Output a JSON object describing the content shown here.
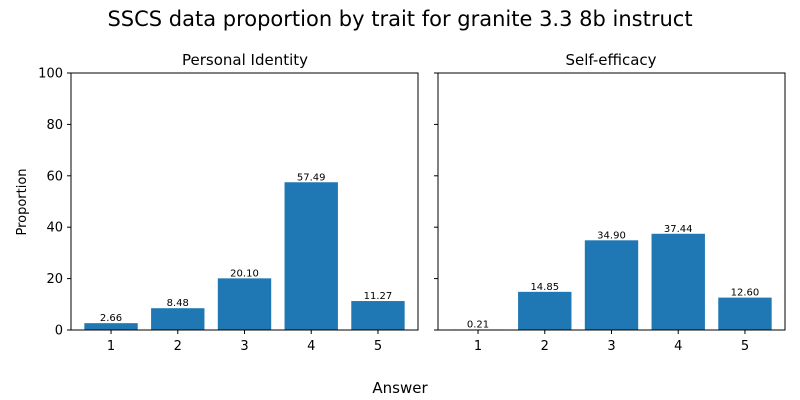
{
  "figure": {
    "title": "SSCS data proportion by trait for granite 3.3 8b instruct",
    "xlabel": "Answer",
    "ylabel": "Proportion"
  },
  "chart_data": [
    {
      "type": "bar",
      "title": "Personal Identity",
      "categories": [
        "1",
        "2",
        "3",
        "4",
        "5"
      ],
      "values": [
        2.66,
        8.48,
        20.1,
        57.49,
        11.27
      ],
      "value_labels": [
        "2.66",
        "8.48",
        "20.10",
        "57.49",
        "11.27"
      ],
      "ylim": [
        0,
        100
      ],
      "yticks": [
        "0",
        "20",
        "40",
        "60",
        "80",
        "100"
      ],
      "bar_color": "#1f77b4"
    },
    {
      "type": "bar",
      "title": "Self-efficacy",
      "categories": [
        "1",
        "2",
        "3",
        "4",
        "5"
      ],
      "values": [
        0.21,
        14.85,
        34.9,
        37.44,
        12.6
      ],
      "value_labels": [
        "0.21",
        "14.85",
        "34.90",
        "37.44",
        "12.60"
      ],
      "ylim": [
        0,
        100
      ],
      "bar_color": "#1f77b4"
    }
  ]
}
